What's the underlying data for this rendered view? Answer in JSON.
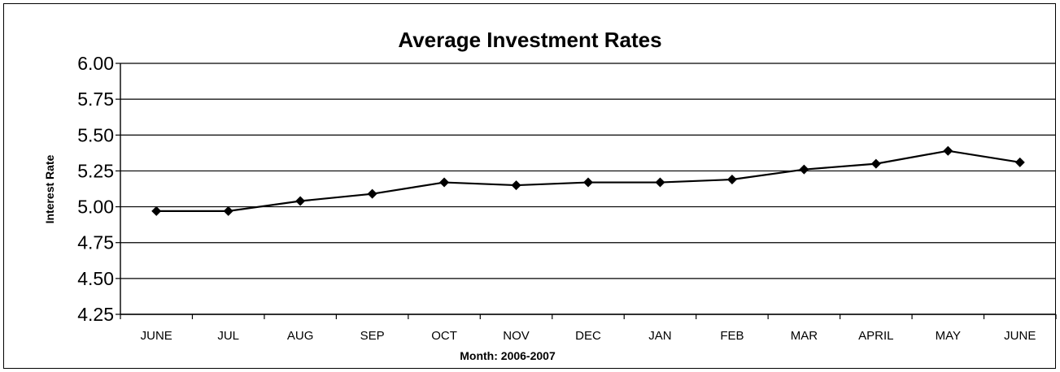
{
  "chart_data": {
    "type": "line",
    "title": "Average Investment Rates",
    "xlabel": "Month: 2006-2007",
    "ylabel": "Interest Rate",
    "categories": [
      "JUNE",
      "JUL",
      "AUG",
      "SEP",
      "OCT",
      "NOV",
      "DEC",
      "JAN",
      "FEB",
      "MAR",
      "APRIL",
      "MAY",
      "JUNE"
    ],
    "series": [
      {
        "values": [
          4.97,
          4.97,
          5.04,
          5.09,
          5.17,
          5.15,
          5.17,
          5.17,
          5.19,
          5.26,
          5.3,
          5.39,
          5.31
        ],
        "color": "#000000",
        "marker": "diamond"
      }
    ],
    "ylim": [
      4.25,
      6.0
    ],
    "yticks": [
      "6.00",
      "5.75",
      "5.50",
      "5.25",
      "5.00",
      "4.75",
      "4.50",
      "4.25"
    ],
    "grid": true,
    "legend": "none"
  }
}
